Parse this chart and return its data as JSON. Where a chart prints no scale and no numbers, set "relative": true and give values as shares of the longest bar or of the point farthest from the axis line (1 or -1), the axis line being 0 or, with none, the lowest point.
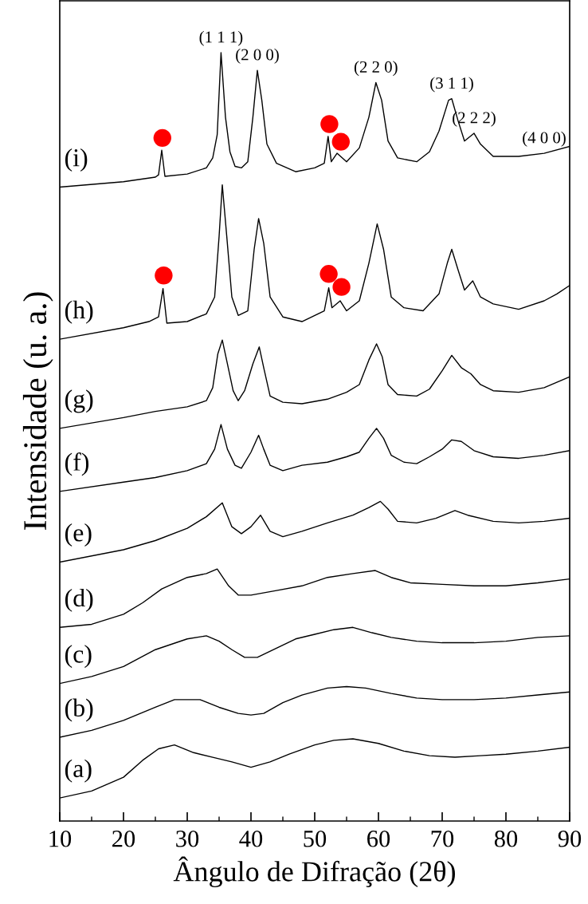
{
  "chart_data": {
    "type": "line",
    "xlabel": "Ângulo de Difração (2θ)",
    "ylabel": "Intensidade (u. a.)",
    "relative": true,
    "tick_labels": "x",
    "grid": false,
    "line_style": "solid",
    "xlim": [
      10,
      90
    ],
    "xticks": [
      10,
      {
        "value": 15,
        "label": null
      },
      20,
      {
        "value": 25,
        "label": null
      },
      30,
      {
        "value": 35,
        "label": null
      },
      40,
      {
        "value": 45,
        "label": null
      },
      50,
      {
        "value": 55,
        "label": null
      },
      60,
      {
        "value": 65,
        "label": null
      },
      70,
      {
        "value": 75,
        "label": null
      },
      80,
      {
        "value": 85,
        "label": null
      },
      90
    ],
    "series": [
      {
        "name": "(a)",
        "color": "#000000",
        "x": [
          10,
          15,
          20,
          23,
          25.5,
          28,
          31,
          34,
          37,
          40,
          43,
          46,
          50,
          53,
          56,
          60,
          64,
          68,
          72,
          76,
          80,
          85,
          90
        ],
        "values": [
          0.03,
          0.039,
          0.057,
          0.079,
          0.094,
          0.099,
          0.089,
          0.083,
          0.077,
          0.07,
          0.077,
          0.087,
          0.099,
          0.105,
          0.107,
          0.101,
          0.091,
          0.085,
          0.083,
          0.085,
          0.087,
          0.091,
          0.096
        ]
      },
      {
        "name": "(b)",
        "color": "#000000",
        "x": [
          10,
          15,
          20,
          25,
          28,
          32,
          35,
          38,
          40,
          42,
          45,
          48,
          52,
          55,
          58,
          62,
          66,
          70,
          75,
          80,
          85,
          90
        ],
        "values": [
          0.109,
          0.118,
          0.131,
          0.148,
          0.158,
          0.158,
          0.148,
          0.14,
          0.138,
          0.14,
          0.154,
          0.164,
          0.173,
          0.175,
          0.173,
          0.166,
          0.16,
          0.158,
          0.158,
          0.16,
          0.164,
          0.168
        ]
      },
      {
        "name": "(c)",
        "color": "#000000",
        "x": [
          10,
          15,
          20,
          25,
          30,
          33,
          35,
          37,
          39,
          41,
          44,
          47,
          50,
          53,
          56,
          59,
          62,
          66,
          70,
          75,
          80,
          85,
          90
        ],
        "values": [
          0.179,
          0.188,
          0.201,
          0.223,
          0.237,
          0.241,
          0.234,
          0.223,
          0.213,
          0.213,
          0.225,
          0.237,
          0.243,
          0.249,
          0.252,
          0.245,
          0.239,
          0.234,
          0.232,
          0.232,
          0.234,
          0.239,
          0.241
        ]
      },
      {
        "name": "(d)",
        "color": "#000000",
        "x": [
          10,
          15,
          20,
          23,
          26,
          30,
          33,
          34.7,
          36.5,
          38,
          40,
          44,
          48,
          52,
          56,
          59.5,
          62,
          65,
          70,
          75,
          80,
          85,
          90
        ],
        "values": [
          0.252,
          0.256,
          0.269,
          0.284,
          0.302,
          0.317,
          0.322,
          0.328,
          0.306,
          0.294,
          0.294,
          0.3,
          0.306,
          0.317,
          0.322,
          0.326,
          0.317,
          0.31,
          0.308,
          0.306,
          0.306,
          0.31,
          0.315
        ]
      },
      {
        "name": "(e)",
        "color": "#000000",
        "x": [
          10,
          20,
          25,
          30,
          33,
          35.5,
          37,
          38.5,
          40,
          41.5,
          43,
          45,
          48,
          52,
          56,
          58.5,
          60.3,
          61.5,
          63,
          66,
          69,
          72,
          74,
          78,
          82,
          86,
          90
        ],
        "values": [
          0.337,
          0.353,
          0.365,
          0.381,
          0.396,
          0.414,
          0.383,
          0.374,
          0.383,
          0.398,
          0.377,
          0.37,
          0.377,
          0.388,
          0.398,
          0.408,
          0.416,
          0.406,
          0.39,
          0.388,
          0.394,
          0.404,
          0.398,
          0.39,
          0.388,
          0.39,
          0.394
        ]
      },
      {
        "name": "(f)",
        "color": "#000000",
        "x": [
          10,
          20,
          25,
          30,
          33,
          34.3,
          35.3,
          36.3,
          37.5,
          38.5,
          40,
          41.2,
          42,
          43,
          45,
          48,
          52,
          55,
          57,
          58.5,
          59.7,
          60.8,
          62,
          64,
          66,
          68,
          70,
          71.5,
          73,
          75,
          78,
          82,
          86,
          90
        ],
        "values": [
          0.429,
          0.441,
          0.447,
          0.456,
          0.465,
          0.484,
          0.516,
          0.484,
          0.463,
          0.459,
          0.48,
          0.502,
          0.484,
          0.463,
          0.456,
          0.463,
          0.467,
          0.474,
          0.48,
          0.498,
          0.511,
          0.498,
          0.476,
          0.467,
          0.465,
          0.474,
          0.484,
          0.496,
          0.494,
          0.482,
          0.474,
          0.472,
          0.476,
          0.482
        ]
      },
      {
        "name": "(g)",
        "color": "#000000",
        "x": [
          10,
          20,
          25,
          30,
          33,
          34,
          34.8,
          35.5,
          36.3,
          37.2,
          38,
          39,
          40.3,
          41.3,
          42,
          43,
          45,
          48,
          52,
          55,
          57,
          58.5,
          59.7,
          60.6,
          61.5,
          63,
          66,
          68,
          70,
          71.5,
          73,
          74.5,
          76,
          78,
          82,
          86,
          90
        ],
        "values": [
          0.511,
          0.525,
          0.533,
          0.539,
          0.547,
          0.564,
          0.608,
          0.626,
          0.595,
          0.56,
          0.547,
          0.56,
          0.595,
          0.617,
          0.59,
          0.553,
          0.545,
          0.543,
          0.549,
          0.558,
          0.568,
          0.6,
          0.621,
          0.604,
          0.568,
          0.555,
          0.553,
          0.562,
          0.586,
          0.606,
          0.59,
          0.582,
          0.568,
          0.56,
          0.558,
          0.564,
          0.578
        ]
      },
      {
        "name": "(h)",
        "color": "#000000",
        "x": [
          10,
          20,
          24,
          25.5,
          26.2,
          26.8,
          30,
          33,
          34.3,
          35.0,
          35.5,
          36.2,
          37,
          38,
          39.5,
          40.5,
          41.2,
          42,
          43,
          45,
          48,
          51.5,
          52.2,
          52.7,
          54.0,
          55,
          57,
          58.5,
          59.8,
          60.8,
          62,
          64,
          67,
          69.5,
          70.8,
          71.5,
          72.5,
          73.5,
          74.8,
          76,
          78,
          82,
          86,
          88,
          90
        ],
        "values": [
          0.627,
          0.642,
          0.65,
          0.656,
          0.693,
          0.648,
          0.65,
          0.66,
          0.682,
          0.761,
          0.828,
          0.761,
          0.682,
          0.658,
          0.664,
          0.744,
          0.784,
          0.752,
          0.682,
          0.656,
          0.65,
          0.664,
          0.694,
          0.668,
          0.677,
          0.664,
          0.677,
          0.726,
          0.777,
          0.744,
          0.682,
          0.668,
          0.664,
          0.686,
          0.726,
          0.744,
          0.717,
          0.691,
          0.703,
          0.682,
          0.673,
          0.666,
          0.677,
          0.686,
          0.697
        ]
      },
      {
        "name": "(i)",
        "color": "#000000",
        "x": [
          10,
          20,
          25,
          25.5,
          26.0,
          26.5,
          30,
          33,
          34,
          34.7,
          35.3,
          36.0,
          36.7,
          37.5,
          38.5,
          39.5,
          40.3,
          41.0,
          41.7,
          42.5,
          44,
          47,
          50,
          51.5,
          52.1,
          52.6,
          53.5,
          55,
          57,
          58.5,
          59.6,
          60.5,
          61.5,
          63,
          66,
          68,
          69.5,
          71,
          71.5,
          72.5,
          73.5,
          75,
          76,
          78,
          82,
          86,
          90
        ],
        "values": [
          0.825,
          0.832,
          0.838,
          0.841,
          0.873,
          0.839,
          0.842,
          0.85,
          0.863,
          0.893,
          1.0,
          0.916,
          0.871,
          0.852,
          0.85,
          0.858,
          0.916,
          0.977,
          0.938,
          0.881,
          0.856,
          0.845,
          0.85,
          0.856,
          0.891,
          0.858,
          0.869,
          0.858,
          0.876,
          0.916,
          0.961,
          0.938,
          0.885,
          0.863,
          0.858,
          0.871,
          0.898,
          0.938,
          0.94,
          0.911,
          0.885,
          0.895,
          0.881,
          0.865,
          0.865,
          0.869,
          0.878
        ]
      },
      {
        "type": "scatter",
        "marker": "circle",
        "color": "#ff0000",
        "x": [
          26.1,
          52.3,
          54.1,
          26.3,
          52.2,
          54.2
        ],
        "values": [
          0.889,
          0.907,
          0.884,
          0.71,
          0.712,
          0.695
        ]
      }
    ],
    "annotations": [
      {
        "text": "(1 1 1)",
        "x": 35.3,
        "y": 1.0
      },
      {
        "text": "(2 0 0)",
        "x": 41.0,
        "y": 0.977
      },
      {
        "text": "(2 2 0)",
        "x": 59.6,
        "y": 0.961
      },
      {
        "text": "(3 1 1)",
        "x": 71.5,
        "y": 0.94
      },
      {
        "text": "(2 2 2)",
        "x": 75.0,
        "y": 0.895
      },
      {
        "text": "(4 0 0)",
        "x": 86.0,
        "y": 0.869
      }
    ]
  }
}
